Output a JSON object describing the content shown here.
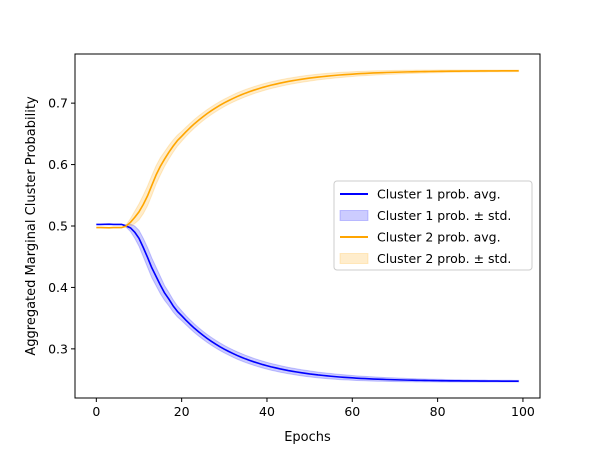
{
  "chart_data": {
    "type": "line",
    "title": "",
    "xlabel": "Epochs",
    "ylabel": "Aggregated Marginal Cluster Probability",
    "xlim": [
      -5,
      104
    ],
    "ylim": [
      0.22,
      0.78
    ],
    "xticks": [
      0,
      20,
      40,
      60,
      80,
      100
    ],
    "yticks": [
      0.3,
      0.4,
      0.5,
      0.6,
      0.7
    ],
    "grid": false,
    "legend_placement": "center-right",
    "x": [
      0,
      1,
      2,
      3,
      4,
      5,
      6,
      7,
      8,
      9,
      10,
      11,
      12,
      13,
      14,
      15,
      16,
      17,
      18,
      19,
      20,
      21,
      22,
      23,
      24,
      25,
      26,
      27,
      28,
      29,
      30,
      31,
      32,
      33,
      34,
      35,
      36,
      37,
      38,
      39,
      40,
      41,
      42,
      43,
      44,
      45,
      46,
      47,
      48,
      49,
      50,
      51,
      52,
      53,
      54,
      55,
      56,
      57,
      58,
      59,
      60,
      61,
      62,
      63,
      64,
      65,
      66,
      67,
      68,
      69,
      70,
      71,
      72,
      73,
      74,
      75,
      76,
      77,
      78,
      79,
      80,
      81,
      82,
      83,
      84,
      85,
      86,
      87,
      88,
      89,
      90,
      91,
      92,
      93,
      94,
      95,
      96,
      97,
      98,
      99
    ],
    "series": [
      {
        "name": "Cluster 1 prob. avg.",
        "kind": "line",
        "color": "#0000ff",
        "values": [
          0.5025,
          0.5025,
          0.5027,
          0.5029,
          0.5026,
          0.5026,
          0.5025,
          0.5,
          0.497,
          0.49,
          0.48,
          0.465,
          0.449,
          0.432,
          0.418,
          0.404,
          0.391,
          0.381,
          0.37,
          0.361,
          0.354,
          0.3467,
          0.3399,
          0.3335,
          0.3276,
          0.3221,
          0.3169,
          0.3121,
          0.3076,
          0.3034,
          0.2995,
          0.2959,
          0.2925,
          0.2893,
          0.2864,
          0.2836,
          0.2811,
          0.2787,
          0.2765,
          0.2744,
          0.2725,
          0.2707,
          0.2691,
          0.2675,
          0.2661,
          0.2647,
          0.2635,
          0.2623,
          0.2612,
          0.2602,
          0.2592,
          0.2584,
          0.2575,
          0.2568,
          0.2561,
          0.2554,
          0.2548,
          0.2542,
          0.2537,
          0.2532,
          0.2528,
          0.2523,
          0.2519,
          0.2516,
          0.2512,
          0.2509,
          0.2506,
          0.2504,
          0.2501,
          0.2499,
          0.2497,
          0.2495,
          0.2493,
          0.2491,
          0.249,
          0.2488,
          0.2487,
          0.2486,
          0.2485,
          0.2484,
          0.2483,
          0.2482,
          0.2481,
          0.248,
          0.2479,
          0.2479,
          0.2478,
          0.2478,
          0.2477,
          0.2477,
          0.2476,
          0.2476,
          0.2475,
          0.2475,
          0.2475,
          0.2474,
          0.2474,
          0.2474,
          0.2474,
          0.2473
        ]
      },
      {
        "name": "Cluster 1 prob. ± std.",
        "kind": "band",
        "color": "#0000ff",
        "of": 0,
        "std": [
          0,
          0,
          0,
          0,
          0,
          0,
          0,
          0.002,
          0.006,
          0.01,
          0.013,
          0.015,
          0.016,
          0.016,
          0.015,
          0.014,
          0.012,
          0.011,
          0.01,
          0.009,
          0.008,
          0.0075,
          0.0072,
          0.007,
          0.0068,
          0.0066,
          0.0065,
          0.0064,
          0.0063,
          0.0062,
          0.0061,
          0.006,
          0.006,
          0.006,
          0.006,
          0.0059,
          0.0058,
          0.0057,
          0.0057,
          0.0056,
          0.0055,
          0.0055,
          0.0054,
          0.0054,
          0.0053,
          0.0052,
          0.0051,
          0.0051,
          0.005,
          0.005,
          0.0049,
          0.0048,
          0.0047,
          0.0046,
          0.0045,
          0.0044,
          0.0043,
          0.0042,
          0.0041,
          0.004,
          0.0039,
          0.0038,
          0.0037,
          0.0036,
          0.0035,
          0.0034,
          0.0033,
          0.0032,
          0.0031,
          0.003,
          0.003,
          0.0029,
          0.0028,
          0.0027,
          0.0026,
          0.0025,
          0.0025,
          0.0024,
          0.0023,
          0.0022,
          0.0022,
          0.0021,
          0.002,
          0.002,
          0.0019,
          0.0019,
          0.0018,
          0.0018,
          0.0017,
          0.0017,
          0.0016,
          0.0016,
          0.0015,
          0.0015,
          0.0015,
          0.0014,
          0.0014,
          0.0014,
          0.0013,
          0.0013
        ]
      },
      {
        "name": "Cluster 2 prob. avg.",
        "kind": "line",
        "color": "#ffa500",
        "values": [
          0.4975,
          0.4975,
          0.4973,
          0.4971,
          0.4974,
          0.4974,
          0.4975,
          0.5,
          0.506,
          0.514,
          0.523,
          0.535,
          0.549,
          0.566,
          0.583,
          0.597,
          0.609,
          0.62,
          0.63,
          0.639,
          0.646,
          0.6533,
          0.6601,
          0.6665,
          0.6724,
          0.6779,
          0.6831,
          0.6879,
          0.6924,
          0.6966,
          0.7005,
          0.7041,
          0.7075,
          0.7107,
          0.7136,
          0.7164,
          0.7189,
          0.7213,
          0.7235,
          0.7256,
          0.7275,
          0.7293,
          0.7309,
          0.7325,
          0.7339,
          0.7353,
          0.7365,
          0.7377,
          0.7388,
          0.7398,
          0.7408,
          0.7416,
          0.7425,
          0.7432,
          0.7439,
          0.7446,
          0.7452,
          0.7458,
          0.7463,
          0.7468,
          0.7472,
          0.7477,
          0.7481,
          0.7484,
          0.7488,
          0.7491,
          0.7494,
          0.7496,
          0.7499,
          0.7501,
          0.7503,
          0.7505,
          0.7507,
          0.7509,
          0.751,
          0.7512,
          0.7513,
          0.7514,
          0.7515,
          0.7516,
          0.7517,
          0.7518,
          0.7519,
          0.752,
          0.7521,
          0.7521,
          0.7522,
          0.7522,
          0.7523,
          0.7523,
          0.7524,
          0.7524,
          0.7525,
          0.7525,
          0.7525,
          0.7526,
          0.7526,
          0.7526,
          0.7526,
          0.7527
        ]
      },
      {
        "name": "Cluster 2 prob. ± std.",
        "kind": "band",
        "color": "#ffa500",
        "of": 2,
        "std": [
          0,
          0,
          0,
          0,
          0,
          0,
          0,
          0.002,
          0.006,
          0.01,
          0.013,
          0.015,
          0.016,
          0.016,
          0.015,
          0.014,
          0.012,
          0.011,
          0.01,
          0.009,
          0.008,
          0.0075,
          0.0072,
          0.007,
          0.0068,
          0.0066,
          0.0065,
          0.0064,
          0.0063,
          0.0062,
          0.0061,
          0.006,
          0.006,
          0.006,
          0.006,
          0.0059,
          0.0058,
          0.0057,
          0.0057,
          0.0056,
          0.0055,
          0.0055,
          0.0054,
          0.0054,
          0.0053,
          0.0052,
          0.0051,
          0.0051,
          0.005,
          0.005,
          0.0049,
          0.0048,
          0.0047,
          0.0046,
          0.0045,
          0.0044,
          0.0043,
          0.0042,
          0.0041,
          0.004,
          0.0039,
          0.0038,
          0.0037,
          0.0036,
          0.0035,
          0.0034,
          0.0033,
          0.0032,
          0.0031,
          0.003,
          0.003,
          0.0029,
          0.0028,
          0.0027,
          0.0026,
          0.0025,
          0.0025,
          0.0024,
          0.0023,
          0.0022,
          0.0022,
          0.0021,
          0.002,
          0.002,
          0.0019,
          0.0019,
          0.0018,
          0.0018,
          0.0017,
          0.0017,
          0.0016,
          0.0016,
          0.0015,
          0.0015,
          0.0015,
          0.0014,
          0.0014,
          0.0014,
          0.0013,
          0.0013
        ]
      }
    ]
  }
}
